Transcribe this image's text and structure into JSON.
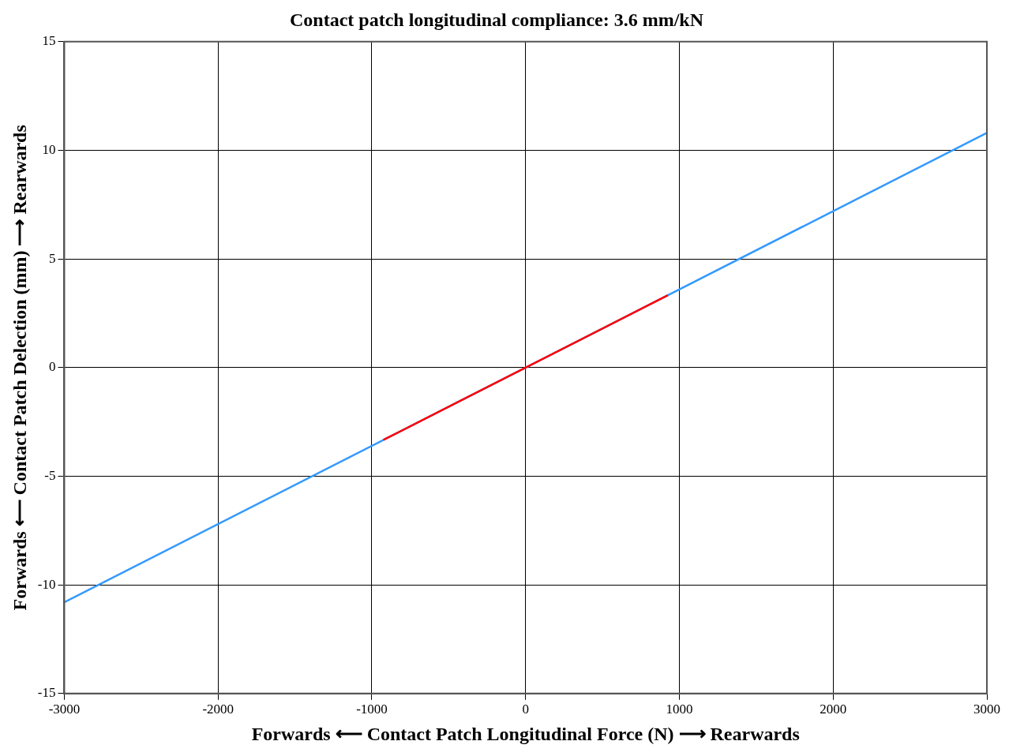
{
  "chart_data": {
    "type": "line",
    "title": "Contact patch longitudinal compliance: 3.6 mm/kN",
    "xlabel": "Forwards ⟵ Contact Patch Longitudinal Force (N) ⟶ Rearwards",
    "ylabel": "Forwards ⟵ Contact Patch Delection (mm) ⟶ Rearwards",
    "series": [
      {
        "color": "#3399ff",
        "x": [
          -3000,
          3000
        ],
        "values": [
          -10.8,
          10.8
        ]
      },
      {
        "color": "#ff0000",
        "x": [
          -925,
          925
        ],
        "values": [
          -3.33,
          3.33
        ]
      }
    ],
    "xlim": [
      -3000,
      3000
    ],
    "xticks": [
      -3000,
      -2000,
      -1000,
      0,
      1000,
      2000,
      3000
    ],
    "ylim": [
      -15,
      15
    ],
    "yticks": [
      -15,
      -10,
      -5,
      0,
      5,
      10,
      15
    ],
    "grid": true,
    "legend": false,
    "marker": "none",
    "line_style": "solid"
  }
}
